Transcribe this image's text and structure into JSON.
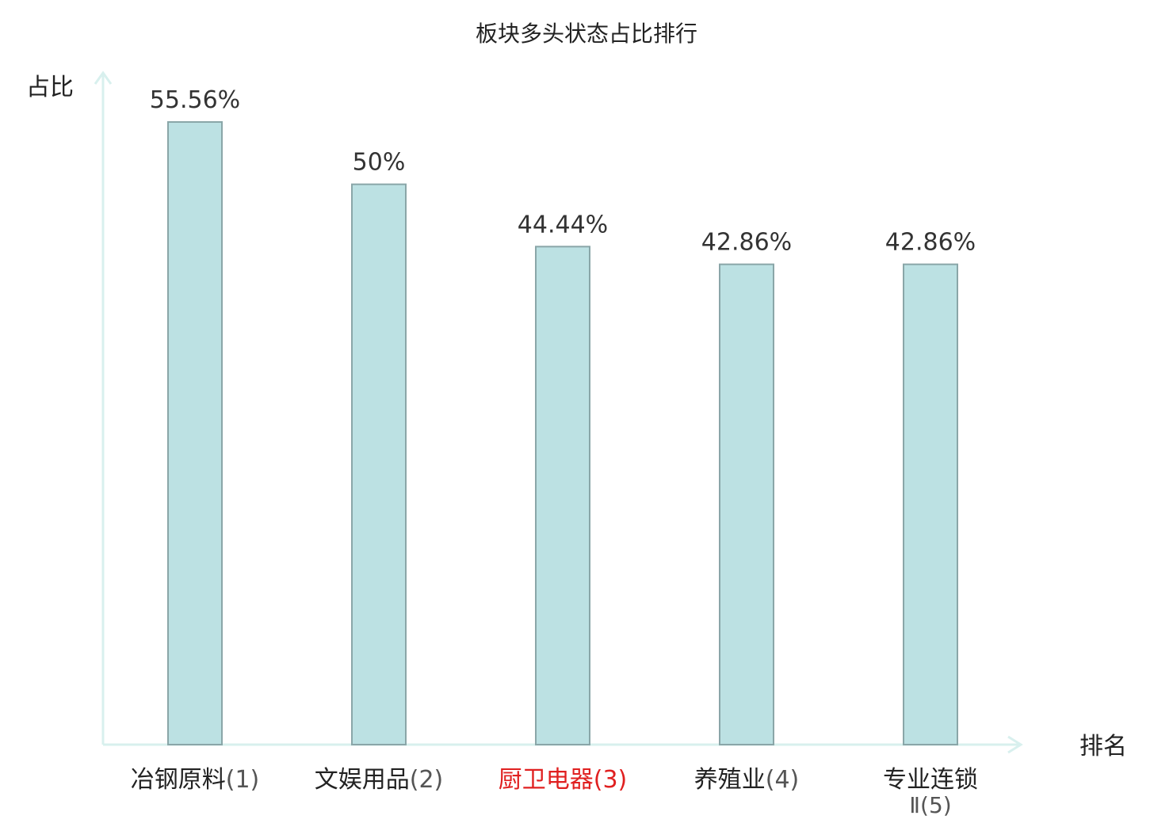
{
  "chart_data": {
    "type": "bar",
    "title": "板块多头状态占比排行",
    "xlabel": "排名",
    "ylabel": "占比",
    "categories": [
      {
        "name": "冶钢原料",
        "rank": "(1)"
      },
      {
        "name": "文娱用品",
        "rank": "(2)"
      },
      {
        "name": "厨卫电器",
        "rank": "(3)"
      },
      {
        "name": "养殖业",
        "rank": "(4)"
      },
      {
        "name": "专业连锁",
        "rank": "Ⅱ(5)"
      }
    ],
    "values": [
      55.56,
      50,
      44.44,
      42.86,
      42.86
    ],
    "value_labels": [
      "55.56%",
      "50%",
      "44.44%",
      "42.86%",
      "42.86%"
    ],
    "ylim": [
      0,
      55.56
    ],
    "highlight_index": 2,
    "grid": false,
    "legend": "none",
    "colors": {
      "bar_fill": "#bce1e3",
      "bar_stroke": "#8aa6a8",
      "axis": "#d8f0ee",
      "text": "#222222",
      "value_text": "#333333",
      "highlight_text": "#e02020",
      "rank_text": "#555555"
    }
  }
}
